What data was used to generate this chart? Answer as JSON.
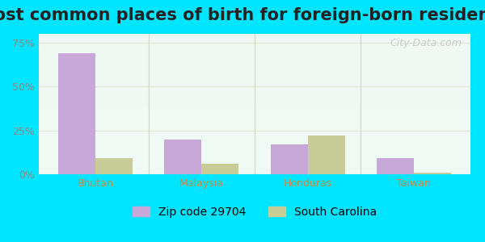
{
  "title": "Most common places of birth for foreign-born residents",
  "categories": [
    "Bhutan",
    "Malaysia",
    "Honduras",
    "Taiwan"
  ],
  "zip_values": [
    69,
    20,
    17,
    9
  ],
  "sc_values": [
    9,
    6,
    22,
    1
  ],
  "zip_color": "#c8a8d8",
  "sc_color": "#c8cc96",
  "bar_width": 0.35,
  "ylim": [
    0,
    80
  ],
  "yticks": [
    0,
    25,
    50,
    75
  ],
  "ytick_labels": [
    "0%",
    "25%",
    "50%",
    "75%"
  ],
  "legend_zip": "Zip code 29704",
  "legend_sc": "South Carolina",
  "background_outer": "#00e5ff",
  "background_inner_top": "#e8f5e2",
  "background_inner_bottom": "#f5faf0",
  "grid_color": "#e0e8d8",
  "watermark": "City-Data.com",
  "title_fontsize": 15,
  "tick_fontsize": 9,
  "legend_fontsize": 10
}
